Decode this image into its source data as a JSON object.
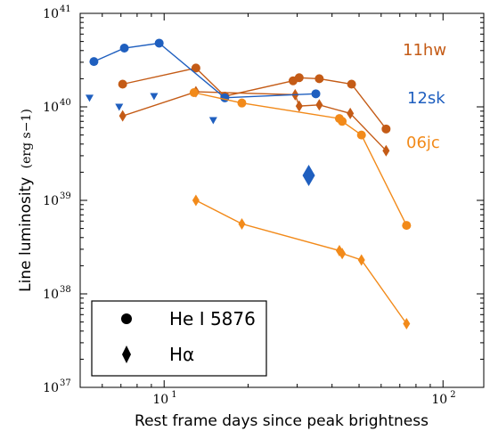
{
  "chart_data": {
    "type": "scatter",
    "title": "",
    "xlabel": "Rest frame days since peak brightness",
    "ylabel": "Line luminosity",
    "ylabel_unit": "(erg s−1)",
    "xscale": "log",
    "yscale": "log",
    "xlim": [
      5,
      140
    ],
    "ylim": [
      1e+37,
      1e+41
    ],
    "x_tick_labels": [
      "10",
      "1",
      "10",
      "2"
    ],
    "y_tick_labels": [
      {
        "base": "10",
        "exp": "37"
      },
      {
        "base": "10",
        "exp": "38"
      },
      {
        "base": "10",
        "exp": "39"
      },
      {
        "base": "10",
        "exp": "40"
      },
      {
        "base": "10",
        "exp": "41"
      }
    ],
    "grid": false,
    "legend": {
      "placement": "lower-left",
      "entries": [
        {
          "label": "He I 5876",
          "marker": "circle"
        },
        {
          "label": "Hα",
          "marker": "diamond"
        }
      ]
    },
    "annotations": [
      {
        "text": "11hw",
        "color": "#c45b16"
      },
      {
        "text": "12sk",
        "color": "#1f5fbf"
      },
      {
        "text": "06jc",
        "color": "#f28a1a"
      }
    ],
    "series": [
      {
        "object": "11hw",
        "line": "He I 5876",
        "marker": "circle",
        "color": "#c45b16",
        "connected": true,
        "x": [
          7.1,
          13.0,
          16.5,
          29.0,
          30.5,
          36.0,
          47.0,
          62.5
        ],
        "y": [
          1.75e+40,
          2.6e+40,
          1.3e+40,
          1.9e+40,
          2.05e+40,
          2e+40,
          1.75e+40,
          5.8e+39
        ]
      },
      {
        "object": "11hw",
        "line": "Hα",
        "marker": "diamond",
        "color": "#c45b16",
        "connected": true,
        "x": [
          7.1,
          13.0,
          29.5,
          30.5,
          36.0,
          46.5,
          62.5
        ],
        "y": [
          8e+39,
          1.45e+40,
          1.35e+40,
          1.02e+40,
          1.05e+40,
          8.5e+39,
          3.4e+39
        ]
      },
      {
        "object": "12sk",
        "line": "He I 5876",
        "marker": "circle",
        "color": "#1f5fbf",
        "connected": true,
        "x": [
          5.6,
          7.2,
          9.6,
          16.5,
          35.0
        ],
        "y": [
          3.05e+40,
          4.25e+40,
          4.8e+40,
          1.25e+40,
          1.38e+40
        ]
      },
      {
        "object": "12sk",
        "line": "upper limits",
        "marker": "triangle-down",
        "color": "#1f5fbf",
        "connected": false,
        "x": [
          5.4,
          6.9,
          9.2,
          15.0
        ],
        "y": [
          1.25e+40,
          1e+40,
          1.3e+40,
          7.2e+39
        ]
      },
      {
        "object": "12sk",
        "line": "Hα",
        "marker": "diamond-large",
        "color": "#1f5fbf",
        "connected": false,
        "x": [
          33.0
        ],
        "y": [
          1.85e+39
        ]
      },
      {
        "object": "06jc",
        "line": "He I 5876",
        "marker": "circle",
        "color": "#f28a1a",
        "connected": true,
        "x": [
          12.8,
          19.0,
          42.5,
          43.5,
          51.0,
          74.0
        ],
        "y": [
          1.42e+40,
          1.1e+40,
          7.5e+39,
          7e+39,
          5e+39,
          5.4e+38
        ]
      },
      {
        "object": "06jc",
        "line": "Hα",
        "marker": "diamond",
        "color": "#f28a1a",
        "connected": true,
        "x": [
          13.0,
          19.0,
          42.5,
          43.5,
          51.0,
          74.0
        ],
        "y": [
          1e+39,
          5.6e+38,
          2.9e+38,
          2.7e+38,
          2.3e+38,
          4.8e+37
        ]
      }
    ]
  }
}
